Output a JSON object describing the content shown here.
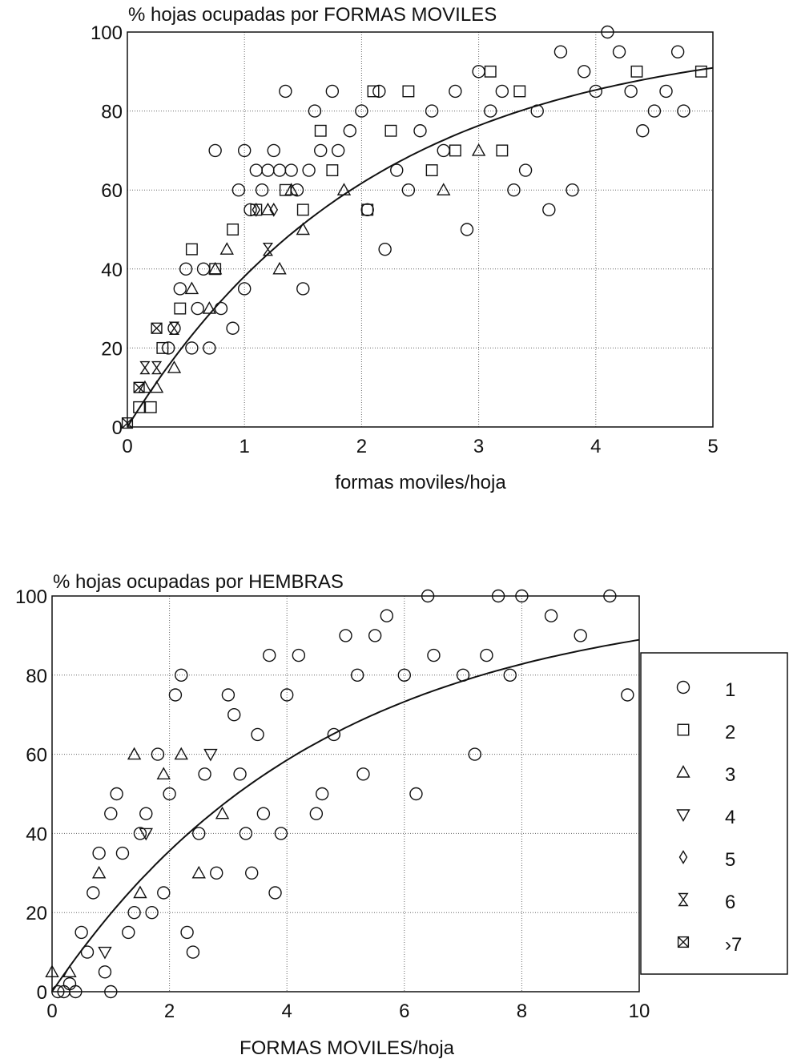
{
  "chart_data": [
    {
      "type": "scatter",
      "title": "% hojas ocupadas por FORMAS MOVILES",
      "xlabel": "formas moviles/hoja",
      "ylabel": "",
      "xlim": [
        0,
        5
      ],
      "ylim": [
        0,
        100
      ],
      "xticks": [
        "0",
        "1",
        "2",
        "3",
        "4",
        "5"
      ],
      "yticks": [
        "0",
        "20",
        "40",
        "60",
        "80",
        "100"
      ],
      "grid": true,
      "series": [
        {
          "name": "1",
          "marker": "circle",
          "points": [
            [
              0.35,
              20
            ],
            [
              0.4,
              25
            ],
            [
              0.45,
              35
            ],
            [
              0.5,
              40
            ],
            [
              0.55,
              20
            ],
            [
              0.6,
              30
            ],
            [
              0.65,
              40
            ],
            [
              0.7,
              20
            ],
            [
              0.75,
              70
            ],
            [
              0.8,
              30
            ],
            [
              0.9,
              25
            ],
            [
              0.95,
              60
            ],
            [
              1.0,
              70
            ],
            [
              1.0,
              35
            ],
            [
              1.05,
              55
            ],
            [
              1.1,
              65
            ],
            [
              1.15,
              60
            ],
            [
              1.2,
              65
            ],
            [
              1.25,
              70
            ],
            [
              1.3,
              65
            ],
            [
              1.35,
              85
            ],
            [
              1.4,
              65
            ],
            [
              1.45,
              60
            ],
            [
              1.5,
              35
            ],
            [
              1.55,
              65
            ],
            [
              1.6,
              80
            ],
            [
              1.65,
              70
            ],
            [
              1.75,
              85
            ],
            [
              1.8,
              70
            ],
            [
              1.9,
              75
            ],
            [
              2.0,
              80
            ],
            [
              2.05,
              55
            ],
            [
              2.15,
              85
            ],
            [
              2.2,
              45
            ],
            [
              2.3,
              65
            ],
            [
              2.4,
              60
            ],
            [
              2.5,
              75
            ],
            [
              2.6,
              80
            ],
            [
              2.7,
              70
            ],
            [
              2.8,
              85
            ],
            [
              2.9,
              50
            ],
            [
              3.0,
              90
            ],
            [
              3.1,
              80
            ],
            [
              3.2,
              85
            ],
            [
              3.3,
              60
            ],
            [
              3.4,
              65
            ],
            [
              3.5,
              80
            ],
            [
              3.6,
              55
            ],
            [
              3.7,
              95
            ],
            [
              3.8,
              60
            ],
            [
              3.9,
              90
            ],
            [
              4.0,
              85
            ],
            [
              4.1,
              100
            ],
            [
              4.2,
              95
            ],
            [
              4.3,
              85
            ],
            [
              4.4,
              75
            ],
            [
              4.5,
              80
            ],
            [
              4.6,
              85
            ],
            [
              4.7,
              95
            ],
            [
              4.75,
              80
            ]
          ]
        },
        {
          "name": "2",
          "marker": "square",
          "points": [
            [
              0.1,
              5
            ],
            [
              0.2,
              5
            ],
            [
              0.3,
              20
            ],
            [
              0.45,
              30
            ],
            [
              0.55,
              45
            ],
            [
              0.75,
              40
            ],
            [
              0.9,
              50
            ],
            [
              1.1,
              55
            ],
            [
              1.35,
              60
            ],
            [
              1.5,
              55
            ],
            [
              1.65,
              75
            ],
            [
              1.75,
              65
            ],
            [
              2.05,
              55
            ],
            [
              2.1,
              85
            ],
            [
              2.25,
              75
            ],
            [
              2.4,
              85
            ],
            [
              2.6,
              65
            ],
            [
              2.8,
              70
            ],
            [
              3.1,
              90
            ],
            [
              3.2,
              70
            ],
            [
              3.35,
              85
            ],
            [
              4.35,
              90
            ],
            [
              4.9,
              90
            ]
          ]
        },
        {
          "name": "3",
          "marker": "triangle-up",
          "points": [
            [
              0.15,
              10
            ],
            [
              0.25,
              10
            ],
            [
              0.4,
              15
            ],
            [
              0.55,
              35
            ],
            [
              0.7,
              30
            ],
            [
              0.75,
              40
            ],
            [
              0.85,
              45
            ],
            [
              1.2,
              55
            ],
            [
              1.3,
              40
            ],
            [
              1.4,
              60
            ],
            [
              1.5,
              50
            ],
            [
              1.85,
              60
            ],
            [
              2.7,
              60
            ],
            [
              3.0,
              70
            ]
          ]
        },
        {
          "name": "4",
          "marker": "triangle-down",
          "points": []
        },
        {
          "name": "5",
          "marker": "diamond",
          "points": [
            [
              1.1,
              55
            ],
            [
              1.25,
              55
            ]
          ]
        },
        {
          "name": "6",
          "marker": "hourglass",
          "points": [
            [
              0.15,
              15
            ],
            [
              0.25,
              15
            ],
            [
              0.4,
              25
            ],
            [
              1.2,
              45
            ]
          ]
        },
        {
          "name": ">7",
          "marker": "boxed-x",
          "points": [
            [
              0.0,
              1
            ],
            [
              0.1,
              10
            ],
            [
              0.25,
              25
            ]
          ]
        }
      ],
      "fit_curve": {
        "equation": "y = 100*(1 - exp(-0.48*x))"
      }
    },
    {
      "type": "scatter",
      "title": "% hojas ocupadas por HEMBRAS",
      "xlabel": "FORMAS MOVILES/hoja",
      "ylabel": "",
      "xlim": [
        0,
        10
      ],
      "ylim": [
        0,
        100
      ],
      "xticks": [
        "0",
        "2",
        "4",
        "6",
        "8",
        "10"
      ],
      "yticks": [
        "0",
        "20",
        "40",
        "60",
        "80",
        "100"
      ],
      "grid": true,
      "legend_position": "right",
      "legend": [
        {
          "label": "1",
          "marker": "circle"
        },
        {
          "label": "2",
          "marker": "square"
        },
        {
          "label": "3",
          "marker": "triangle-up"
        },
        {
          "label": "4",
          "marker": "triangle-down"
        },
        {
          "label": "5",
          "marker": "diamond"
        },
        {
          "label": "6",
          "marker": "hourglass"
        },
        {
          "label": "›7",
          "marker": "boxed-x"
        }
      ],
      "series": [
        {
          "name": "1",
          "marker": "circle",
          "points": [
            [
              0.1,
              0
            ],
            [
              0.2,
              0
            ],
            [
              0.3,
              2
            ],
            [
              0.4,
              0
            ],
            [
              0.5,
              15
            ],
            [
              0.6,
              10
            ],
            [
              0.7,
              25
            ],
            [
              0.8,
              35
            ],
            [
              0.9,
              5
            ],
            [
              1.0,
              45
            ],
            [
              1.1,
              50
            ],
            [
              1.0,
              0
            ],
            [
              1.2,
              35
            ],
            [
              1.3,
              15
            ],
            [
              1.4,
              20
            ],
            [
              1.5,
              40
            ],
            [
              1.6,
              45
            ],
            [
              1.7,
              20
            ],
            [
              1.8,
              60
            ],
            [
              1.9,
              25
            ],
            [
              2.0,
              50
            ],
            [
              2.1,
              75
            ],
            [
              2.2,
              80
            ],
            [
              2.3,
              15
            ],
            [
              2.4,
              10
            ],
            [
              2.5,
              40
            ],
            [
              2.6,
              55
            ],
            [
              2.8,
              30
            ],
            [
              3.0,
              75
            ],
            [
              3.1,
              70
            ],
            [
              3.2,
              55
            ],
            [
              3.3,
              40
            ],
            [
              3.4,
              30
            ],
            [
              3.5,
              65
            ],
            [
              3.6,
              45
            ],
            [
              3.7,
              85
            ],
            [
              3.8,
              25
            ],
            [
              3.9,
              40
            ],
            [
              4.0,
              75
            ],
            [
              4.2,
              85
            ],
            [
              4.5,
              45
            ],
            [
              4.6,
              50
            ],
            [
              4.8,
              65
            ],
            [
              5.0,
              90
            ],
            [
              5.2,
              80
            ],
            [
              5.3,
              55
            ],
            [
              5.5,
              90
            ],
            [
              5.7,
              95
            ],
            [
              6.0,
              80
            ],
            [
              6.2,
              50
            ],
            [
              6.4,
              100
            ],
            [
              6.5,
              85
            ],
            [
              7.0,
              80
            ],
            [
              7.2,
              60
            ],
            [
              7.4,
              85
            ],
            [
              7.6,
              100
            ],
            [
              7.8,
              80
            ],
            [
              8.0,
              100
            ],
            [
              8.5,
              95
            ],
            [
              9.0,
              90
            ],
            [
              9.5,
              100
            ],
            [
              9.8,
              75
            ]
          ]
        },
        {
          "name": "2",
          "marker": "square",
          "points": []
        },
        {
          "name": "3",
          "marker": "triangle-up",
          "points": [
            [
              0.0,
              5
            ],
            [
              0.3,
              5
            ],
            [
              0.8,
              30
            ],
            [
              1.5,
              25
            ],
            [
              1.4,
              60
            ],
            [
              1.9,
              55
            ],
            [
              2.2,
              60
            ],
            [
              2.5,
              30
            ],
            [
              2.9,
              45
            ]
          ]
        },
        {
          "name": "4",
          "marker": "triangle-down",
          "points": [
            [
              0.9,
              10
            ],
            [
              1.6,
              40
            ],
            [
              2.7,
              60
            ]
          ]
        },
        {
          "name": "5",
          "marker": "diamond",
          "points": []
        },
        {
          "name": "6",
          "marker": "hourglass",
          "points": []
        },
        {
          "name": "›7",
          "marker": "boxed-x",
          "points": []
        }
      ],
      "fit_curve": {
        "equation": "y = 100*(1 - exp(-0.22*x))"
      }
    }
  ]
}
